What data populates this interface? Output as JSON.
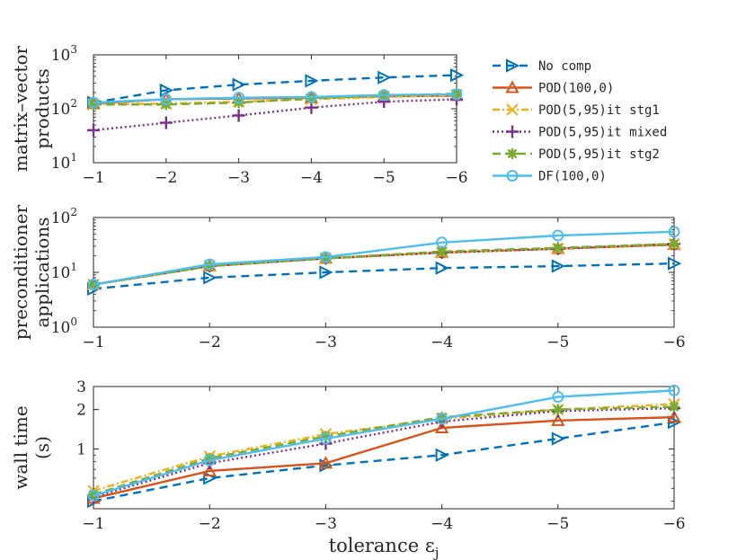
{
  "chart_data": [
    {
      "type": "line",
      "ylabel": [
        "matrix–vector",
        "products"
      ],
      "yscale": "log",
      "ylim": [
        10,
        1000
      ],
      "yticks": [
        {
          "v": 10,
          "base": "10",
          "exp": "1"
        },
        {
          "v": 100,
          "base": "10",
          "exp": "2"
        },
        {
          "v": 1000,
          "base": "10",
          "exp": "3"
        }
      ],
      "x": [
        -1,
        -2,
        -3,
        -4,
        -5,
        -6
      ],
      "xticks": [
        "−1",
        "−2",
        "−3",
        "−4",
        "−5",
        "−6"
      ],
      "series": [
        {
          "name": "No comp",
          "values": [
            130,
            220,
            280,
            330,
            380,
            420
          ]
        },
        {
          "name": "POD(100,0)",
          "values": [
            125,
            150,
            155,
            160,
            170,
            175
          ]
        },
        {
          "name": "POD(5,95)it stg1",
          "values": [
            120,
            125,
            135,
            150,
            165,
            180
          ]
        },
        {
          "name": "POD(5,95)it mixed",
          "values": [
            40,
            55,
            75,
            105,
            135,
            150
          ]
        },
        {
          "name": "POD(5,95)it stg2",
          "values": [
            120,
            120,
            130,
            155,
            175,
            190
          ]
        },
        {
          "name": "DF(100,0)",
          "values": [
            130,
            150,
            160,
            165,
            180,
            185
          ]
        }
      ]
    },
    {
      "type": "line",
      "ylabel": [
        "preconditioner",
        "applications"
      ],
      "yscale": "log",
      "ylim": [
        1,
        100
      ],
      "yticks": [
        {
          "v": 1,
          "base": "10",
          "exp": "0"
        },
        {
          "v": 10,
          "base": "10",
          "exp": "1"
        },
        {
          "v": 100,
          "base": "10",
          "exp": "2"
        }
      ],
      "x": [
        -1,
        -2,
        -3,
        -4,
        -5,
        -6
      ],
      "xticks": [
        "−1",
        "−2",
        "−3",
        "−4",
        "−5",
        "−6"
      ],
      "series": [
        {
          "name": "No comp",
          "values": [
            5,
            8,
            10,
            12,
            13,
            14.5
          ]
        },
        {
          "name": "POD(100,0)",
          "values": [
            6,
            13,
            18,
            23,
            27,
            32
          ]
        },
        {
          "name": "POD(5,95)it stg1",
          "values": [
            6,
            13,
            18,
            23,
            27,
            33
          ]
        },
        {
          "name": "POD(5,95)it mixed",
          "values": [
            6,
            13,
            18,
            23,
            27,
            33
          ]
        },
        {
          "name": "POD(5,95)it stg2",
          "values": [
            6,
            13,
            18,
            24,
            28,
            33
          ]
        },
        {
          "name": "DF(100,0)",
          "values": [
            6,
            14,
            19,
            35,
            47,
            55
          ]
        }
      ]
    },
    {
      "type": "line",
      "ylabel": [
        "wall time",
        "(s)"
      ],
      "yscale": "log",
      "ylim": [
        0.35,
        3
      ],
      "yticks": [
        {
          "v": 1,
          "label": "1"
        },
        {
          "v": 2,
          "label": "2"
        },
        {
          "v": 3,
          "label": "3"
        }
      ],
      "xlabel": "tolerance ε",
      "xlabel_sub": "j",
      "x": [
        -1,
        -2,
        -3,
        -4,
        -5,
        -6
      ],
      "xticks": [
        "−1",
        "−2",
        "−3",
        "−4",
        "−5",
        "−6"
      ],
      "series": [
        {
          "name": "No comp",
          "values": [
            0.4,
            0.6,
            0.75,
            0.9,
            1.2,
            1.6
          ]
        },
        {
          "name": "POD(100,0)",
          "values": [
            0.42,
            0.68,
            0.78,
            1.45,
            1.65,
            1.75
          ]
        },
        {
          "name": "POD(5,95)it stg1",
          "values": [
            0.48,
            0.88,
            1.3,
            1.7,
            2.0,
            2.2
          ]
        },
        {
          "name": "POD(5,95)it mixed",
          "values": [
            0.43,
            0.78,
            1.1,
            1.62,
            1.95,
            2.05
          ]
        },
        {
          "name": "POD(5,95)it stg2",
          "values": [
            0.45,
            0.85,
            1.25,
            1.75,
            2.0,
            2.1
          ]
        },
        {
          "name": "DF(100,0)",
          "values": [
            0.44,
            0.82,
            1.2,
            1.7,
            2.5,
            2.8
          ]
        }
      ]
    }
  ],
  "legend": {
    "placement": "right",
    "entries": [
      "No comp",
      "POD(100,0)",
      "POD(5,95)it stg1",
      "POD(5,95)it mixed",
      "POD(5,95)it stg2",
      "DF(100,0)"
    ]
  },
  "styles": [
    {
      "color": "#0072BD",
      "dash": "9,6",
      "marker": "triangle-right"
    },
    {
      "color": "#D95319",
      "dash": "",
      "marker": "triangle-up"
    },
    {
      "color": "#EDB120",
      "dash": "8,3,2,3",
      "marker": "x"
    },
    {
      "color": "#7E2F8E",
      "dash": "2,3",
      "marker": "plus"
    },
    {
      "color": "#77AC30",
      "dash": "9,5",
      "marker": "asterisk"
    },
    {
      "color": "#4DBEEE",
      "dash": "",
      "marker": "circle"
    }
  ]
}
